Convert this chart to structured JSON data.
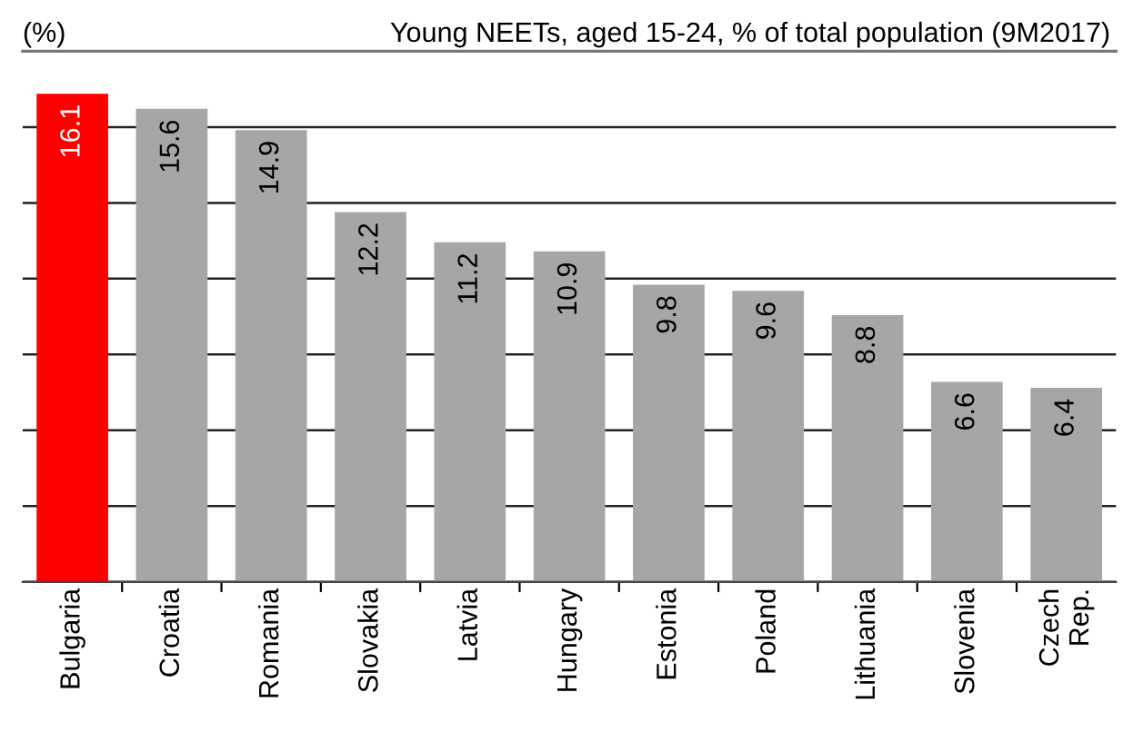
{
  "chart_data": {
    "type": "bar",
    "title": "Young NEETs, aged 15-24, % of total population (9M2017)",
    "ylabel": "(%)",
    "categories": [
      "Bulgaria",
      "Croatia",
      "Romania",
      "Slovakia",
      "Latvia",
      "Hungary",
      "Estonia",
      "Poland",
      "Lithuania",
      "Slovenia",
      "Czech\nRep."
    ],
    "values": [
      16.1,
      15.6,
      14.9,
      12.2,
      11.2,
      10.9,
      9.8,
      9.6,
      8.8,
      6.6,
      6.4
    ],
    "colors": [
      "#ff0000",
      "#a6a6a6",
      "#a6a6a6",
      "#a6a6a6",
      "#a6a6a6",
      "#a6a6a6",
      "#a6a6a6",
      "#a6a6a6",
      "#a6a6a6",
      "#a6a6a6",
      "#a6a6a6"
    ],
    "ylim": [
      0,
      17.5
    ],
    "yticks": [
      {
        "value": 0,
        "label": null
      },
      {
        "value": 2.5,
        "label": null
      },
      {
        "value": 5,
        "label": null
      },
      {
        "value": 7.5,
        "label": null
      },
      {
        "value": 10,
        "label": null
      },
      {
        "value": 12.5,
        "label": null
      },
      {
        "value": 15,
        "label": null
      }
    ],
    "grid": "y",
    "data_labels": true
  }
}
